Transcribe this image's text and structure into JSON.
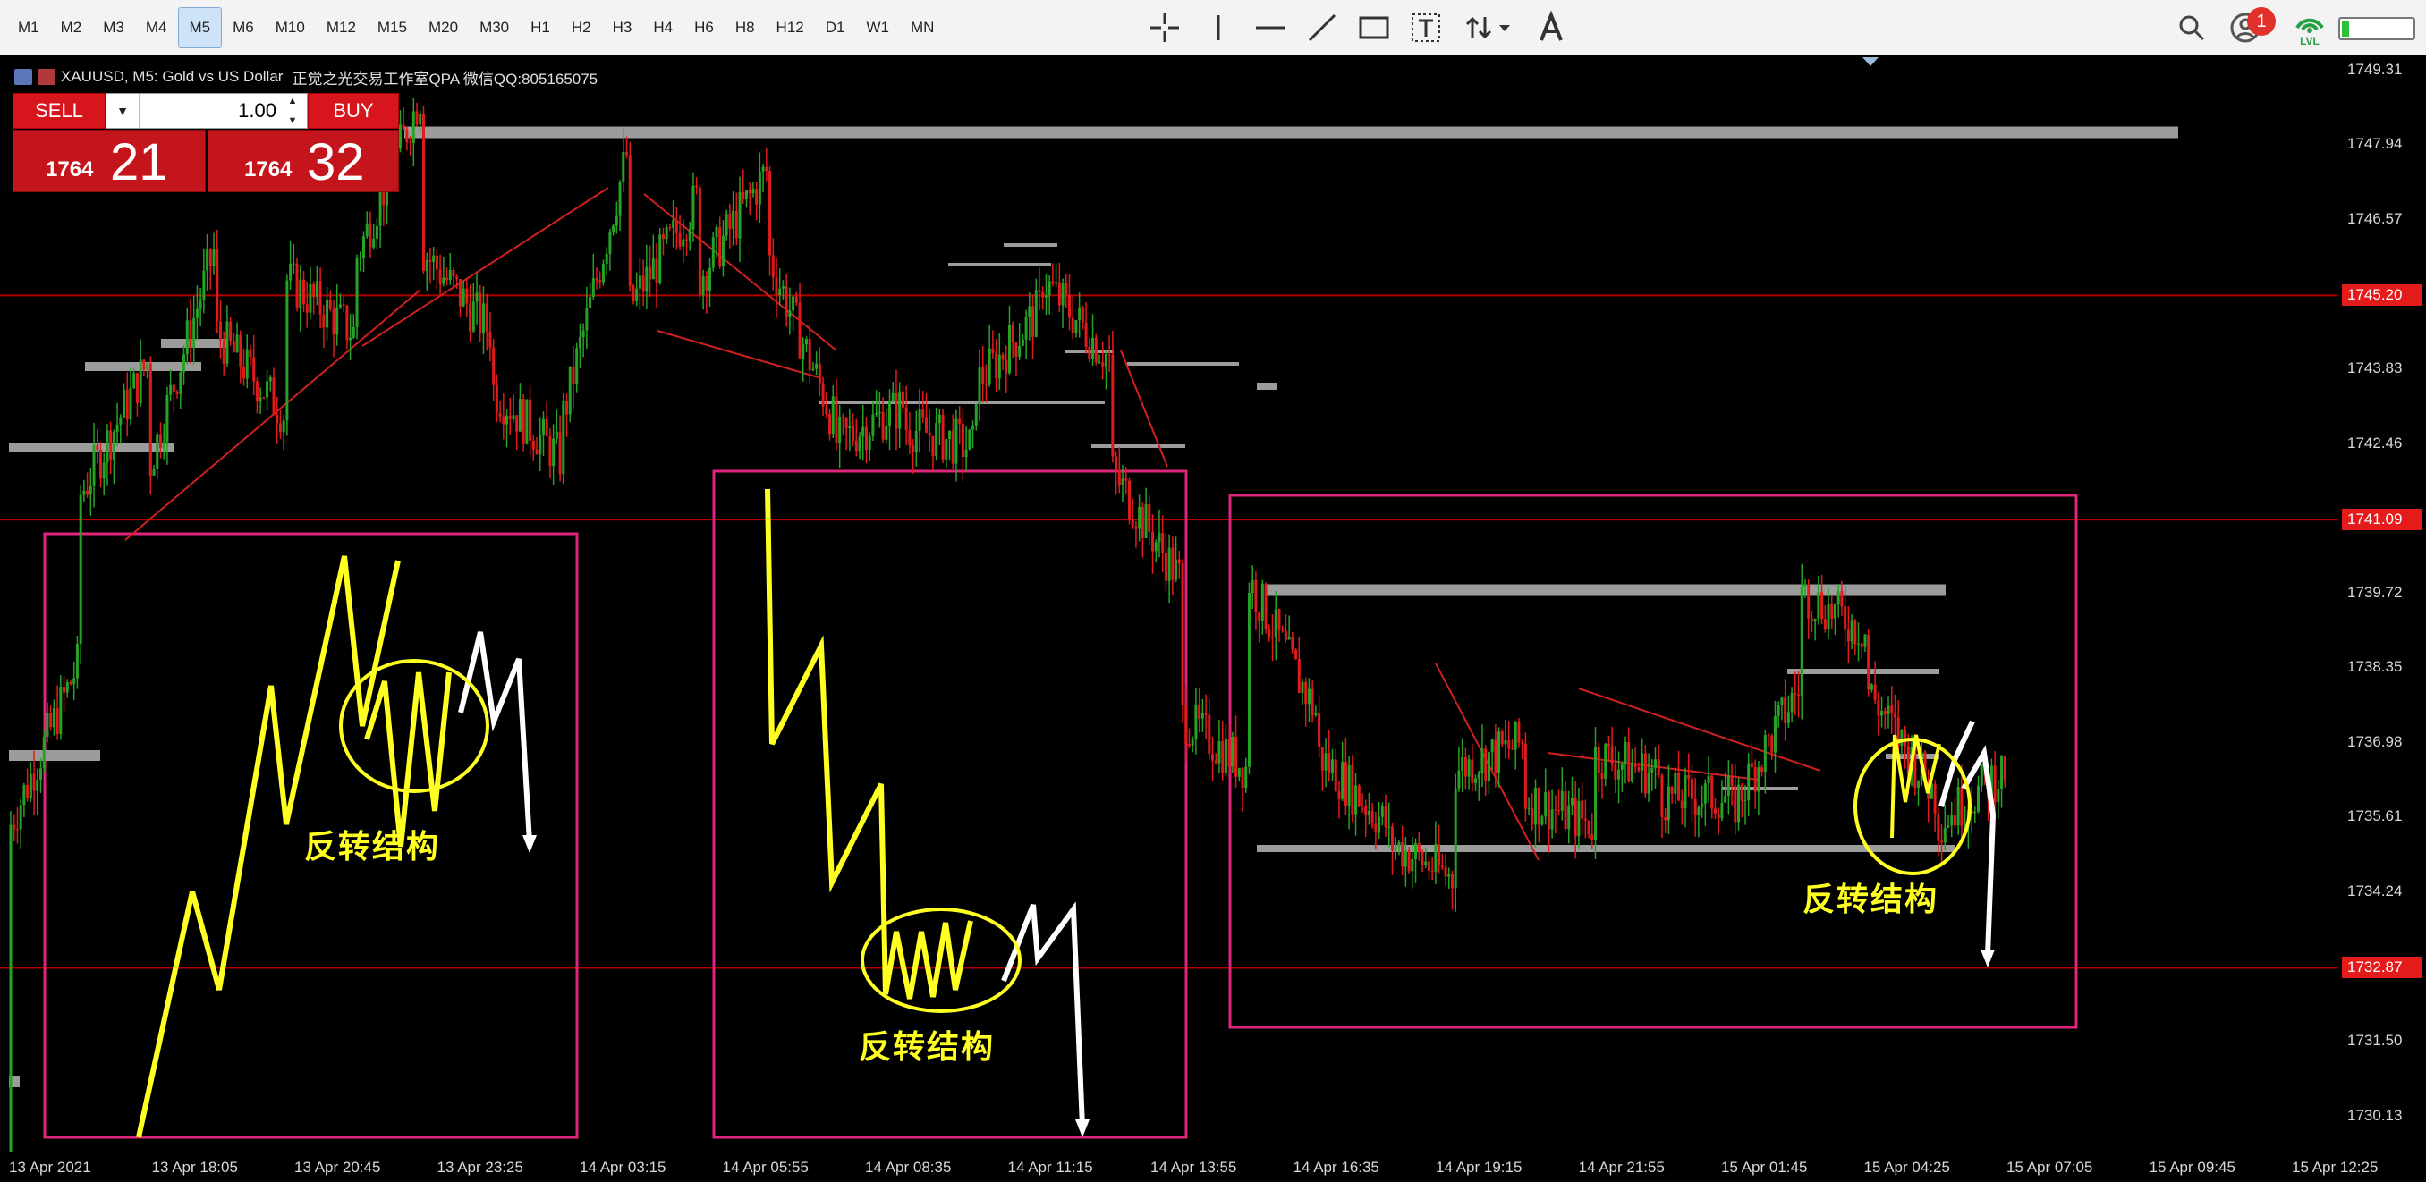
{
  "toolbar": {
    "timeframes": [
      {
        "label": "M1",
        "active": false
      },
      {
        "label": "M2",
        "active": false
      },
      {
        "label": "M3",
        "active": false
      },
      {
        "label": "M4",
        "active": false
      },
      {
        "label": "M5",
        "active": true
      },
      {
        "label": "M6",
        "active": false
      },
      {
        "label": "M10",
        "active": false
      },
      {
        "label": "M12",
        "active": false
      },
      {
        "label": "M15",
        "active": false
      },
      {
        "label": "M20",
        "active": false
      },
      {
        "label": "M30",
        "active": false
      },
      {
        "label": "H1",
        "active": false
      },
      {
        "label": "H2",
        "active": false
      },
      {
        "label": "H3",
        "active": false
      },
      {
        "label": "H4",
        "active": false
      },
      {
        "label": "H6",
        "active": false
      },
      {
        "label": "H8",
        "active": false
      },
      {
        "label": "H12",
        "active": false
      },
      {
        "label": "D1",
        "active": false
      },
      {
        "label": "W1",
        "active": false
      },
      {
        "label": "MN",
        "active": false
      }
    ],
    "drawing_tools": [
      "crosshair-icon",
      "vertical-line-icon",
      "horizontal-line-icon",
      "trend-line-icon",
      "rectangle-icon",
      "text-label-icon",
      "arrows-icon",
      "text-icon"
    ],
    "right_icons": [
      "search-icon",
      "account-icon",
      "signal-icon",
      "battery-icon"
    ],
    "notification_count": "1",
    "signal_label": "LVL",
    "battery_level": 0.1
  },
  "chart": {
    "symbol_info": "XAUUSD, M5:  Gold vs US Dollar",
    "studio_text": "正觉之光交易工作室QPA 微信QQ:805165075",
    "colors": {
      "background": "#000000",
      "bull_candle": "#26a326",
      "bear_candle": "#e01b1b",
      "level_line": "#a0a0a0",
      "box": "#e0257c",
      "annotation": "#ffff22",
      "hline": "#b00000"
    }
  },
  "trade_panel": {
    "sell_label": "SELL",
    "buy_label": "BUY",
    "lot_value": "1.00",
    "sell_price_small": "1764",
    "sell_price_big": "21",
    "buy_price_small": "1764",
    "buy_price_big": "32"
  },
  "price_axis": {
    "ticks": [
      "1749.31",
      "1747.94",
      "1746.57",
      "1745.20",
      "1743.83",
      "1742.46",
      "1741.09",
      "1739.72",
      "1738.35",
      "1736.98",
      "1735.61",
      "1734.24",
      "1732.87",
      "1731.50",
      "1730.13"
    ],
    "highlighted": [
      "1745.20",
      "1741.09",
      "1732.87"
    ]
  },
  "time_axis": {
    "ticks": [
      "13 Apr 2021",
      "13 Apr 18:05",
      "13 Apr 20:45",
      "13 Apr 23:25",
      "14 Apr 03:15",
      "14 Apr 05:55",
      "14 Apr 08:35",
      "14 Apr 11:15",
      "14 Apr 13:55",
      "14 Apr 16:35",
      "14 Apr 19:15",
      "14 Apr 21:55",
      "15 Apr 01:45",
      "15 Apr 04:25",
      "15 Apr 07:05",
      "15 Apr 09:45",
      "15 Apr 12:25"
    ]
  },
  "annotations": {
    "label_1": "反转结构",
    "label_2": "反转结构",
    "label_3": "反转结构"
  },
  "chart_data": {
    "type": "candlestick",
    "symbol": "XAUUSD",
    "timeframe": "M5",
    "ylim": [
      1729.5,
      1749.6
    ],
    "horizontal_levels": [
      1745.2,
      1741.09,
      1732.87
    ],
    "price_path": [
      [
        1729.5,
        1735.5
      ],
      [
        1738.5,
        1741.5
      ],
      [
        1744.0,
        1742.0
      ],
      [
        1746.2,
        1744.5
      ],
      [
        1743.0,
        1745.5
      ],
      [
        1744.5,
        1745.8
      ],
      [
        1749.0,
        1746.0
      ],
      [
        1744.5,
        1743.5
      ],
      [
        1742.2,
        1742.8
      ],
      [
        1748.0,
        1745.0
      ],
      [
        1747.0,
        1745.5
      ],
      [
        1747.5,
        1746.0
      ],
      [
        1742.8,
        1742.5
      ],
      [
        1743.2,
        1742.8
      ],
      [
        1742.4,
        1743.5
      ],
      [
        1745.0,
        1745.5
      ],
      [
        1744.0,
        1742.0
      ],
      [
        1740.0,
        1737.5
      ],
      [
        1736.5,
        1740.0
      ],
      [
        1737.5,
        1736.8
      ],
      [
        1735.5,
        1735.2
      ],
      [
        1734.5,
        1736.5
      ],
      [
        1737.0,
        1736.0
      ],
      [
        1735.5,
        1736.8
      ],
      [
        1736.4,
        1736.0
      ],
      [
        1736.0,
        1735.7
      ],
      [
        1738.0,
        1739.8
      ],
      [
        1739.0,
        1738.0
      ],
      [
        1736.0,
        1735.5
      ],
      [
        1736.5,
        1736.7
      ]
    ]
  }
}
